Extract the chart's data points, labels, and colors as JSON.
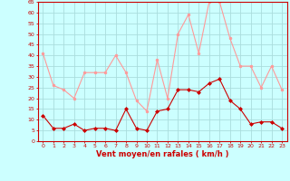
{
  "x": [
    0,
    1,
    2,
    3,
    4,
    5,
    6,
    7,
    8,
    9,
    10,
    11,
    12,
    13,
    14,
    15,
    16,
    17,
    18,
    19,
    20,
    21,
    22,
    23
  ],
  "vent_moyen": [
    12,
    6,
    6,
    8,
    5,
    6,
    6,
    5,
    15,
    6,
    5,
    14,
    15,
    24,
    24,
    23,
    27,
    29,
    19,
    15,
    8,
    9,
    9,
    6
  ],
  "rafales": [
    41,
    26,
    24,
    20,
    32,
    32,
    32,
    40,
    32,
    19,
    14,
    38,
    20,
    50,
    59,
    41,
    65,
    65,
    48,
    35,
    35,
    25,
    35,
    24
  ],
  "color_moyen": "#cc0000",
  "color_rafales": "#ff9999",
  "xlabel": "Vent moyen/en rafales ( km/h )",
  "bg_color": "#ccffff",
  "grid_color": "#aadddd",
  "ylim": [
    0,
    65
  ],
  "yticks": [
    0,
    5,
    10,
    15,
    20,
    25,
    30,
    35,
    40,
    45,
    50,
    55,
    60,
    65
  ]
}
